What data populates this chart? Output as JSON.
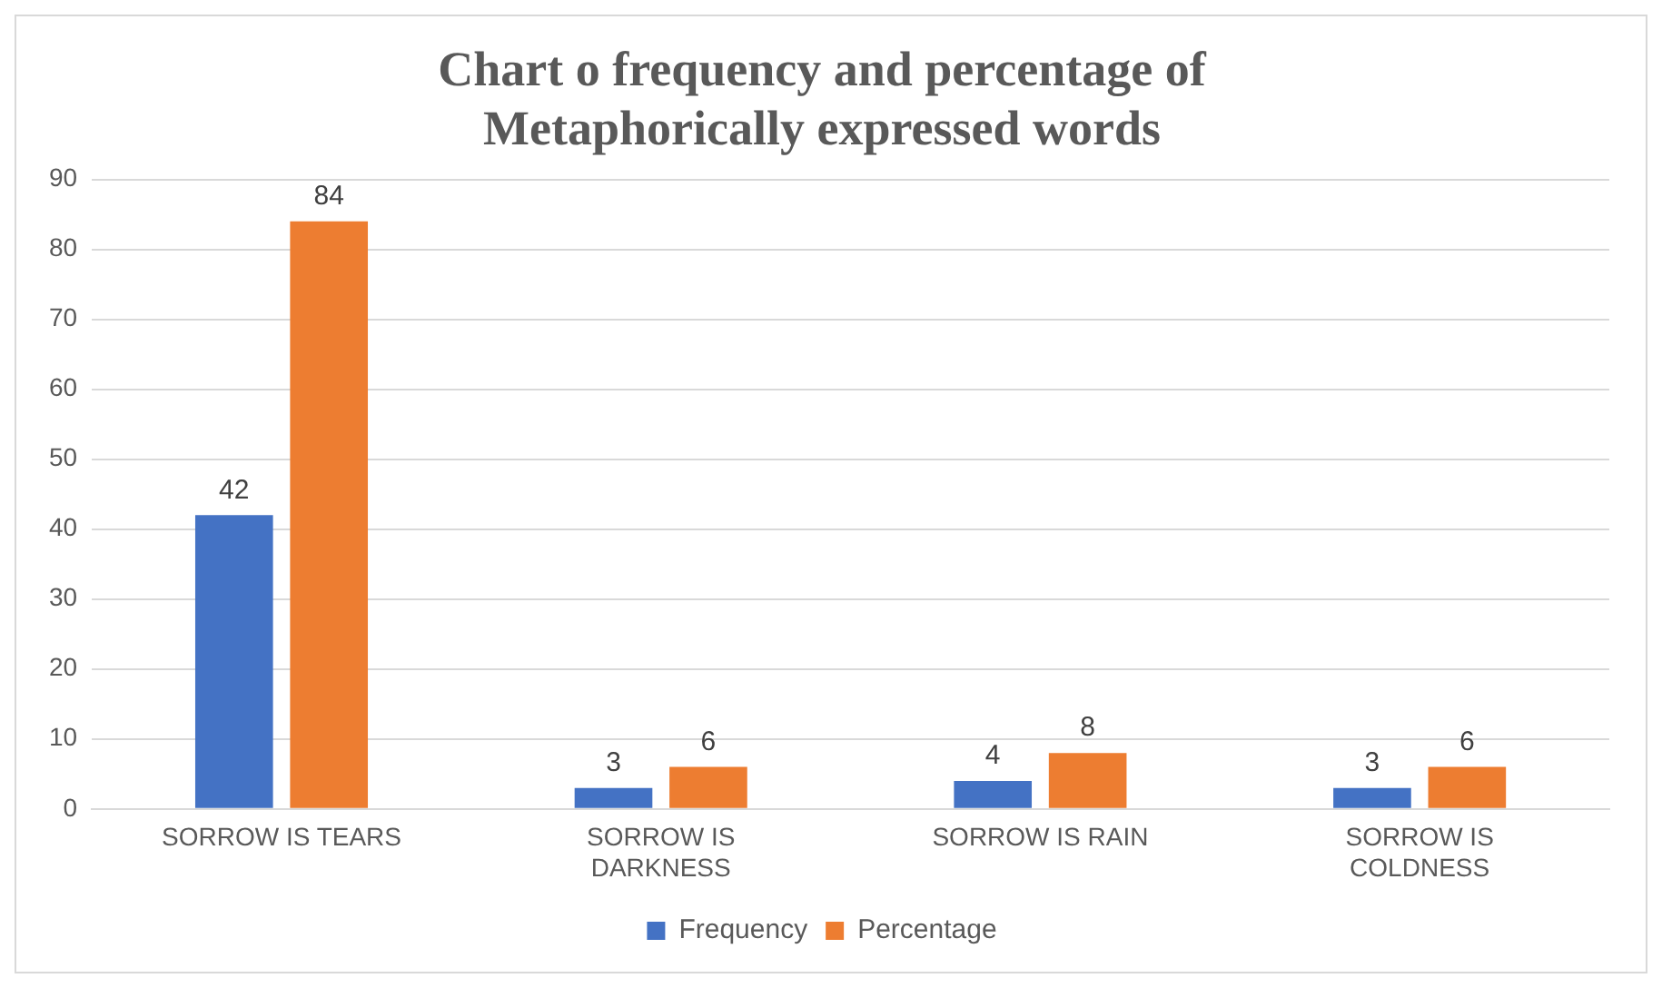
{
  "chart_data": {
    "type": "bar",
    "title": "Chart o frequency and percentage of Metaphorically expressed words",
    "categories": [
      "SORROW IS TEARS",
      "SORROW IS DARKNESS",
      "SORROW IS RAIN",
      "SORROW IS COLDNESS"
    ],
    "series": [
      {
        "name": "Frequency",
        "color": "#4472c4",
        "values": [
          42,
          3,
          4,
          3
        ]
      },
      {
        "name": "Percentage",
        "color": "#ed7d31",
        "values": [
          84,
          6,
          8,
          6
        ]
      }
    ],
    "ylim": [
      0,
      90
    ],
    "yticks": [
      0,
      10,
      20,
      30,
      40,
      50,
      60,
      70,
      80,
      90
    ],
    "grid": "y",
    "legend": "bottom",
    "data_labels": true
  }
}
